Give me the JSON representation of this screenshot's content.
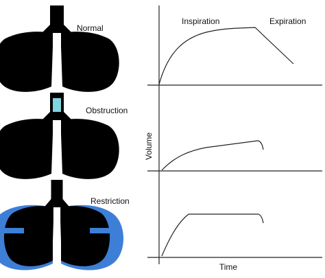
{
  "panels": [
    {
      "label": "Normal"
    },
    {
      "label": "Obstruction"
    },
    {
      "label": "Restriction"
    }
  ],
  "graph": {
    "phases": [
      "Inspiration",
      "Expiration"
    ],
    "y_axis_label": "Volume",
    "x_axis_label": "Time"
  }
}
